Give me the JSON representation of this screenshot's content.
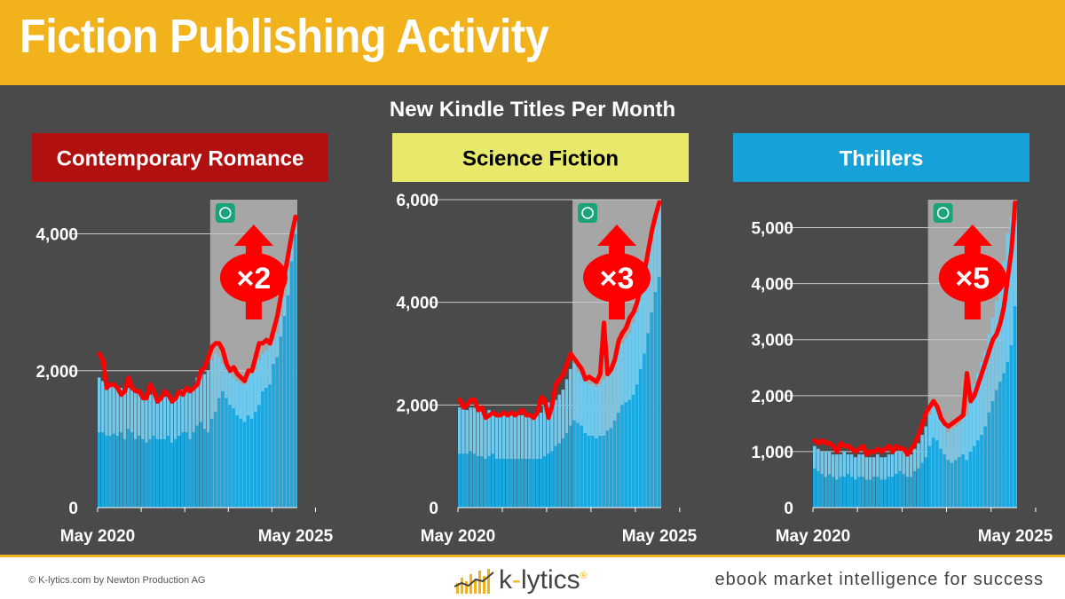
{
  "header": {
    "title": "Fiction Publishing Activity"
  },
  "subtitle": "New Kindle Titles Per Month",
  "colors": {
    "header": "#f2b21c",
    "background": "#4a4a4a",
    "bar_light": "#6fcaf0",
    "bar_dark": "#1aa8e0",
    "line": "#ff0000",
    "shade": "#a6a6a6"
  },
  "chart_data": [
    {
      "type": "bar",
      "title": "Contemporary Romance",
      "title_bg": "#b01010",
      "title_fg": "#ffffff",
      "multiplier": "×2",
      "xlim": [
        "May 2020",
        "May 2025"
      ],
      "xtick_labels": [
        "May 2020",
        "May 2025"
      ],
      "ylim": [
        0,
        4500
      ],
      "yticks": [
        0,
        2000,
        4000
      ],
      "ytick_labels": [
        "0",
        "2,000",
        "4,000"
      ],
      "grid": true,
      "highlight_from": "Dec 2022",
      "series": [
        {
          "values": [
            1100,
            1100,
            1050,
            1050,
            1080,
            1050,
            1100,
            1000,
            1150,
            1100,
            1000,
            1050,
            1000,
            950,
            1000,
            1050,
            1000,
            1000,
            1000,
            1050,
            950,
            1000,
            1050,
            1100,
            1100,
            1000,
            1100,
            1200,
            1250,
            1150,
            1100,
            1300,
            1400,
            1600,
            1700,
            1600,
            1500,
            1450,
            1350,
            1300,
            1250,
            1350,
            1300,
            1400,
            1500,
            1700,
            1750,
            1800,
            2100,
            2200,
            2500,
            2800,
            3100,
            3600,
            4000
          ]
        },
        {
          "values": [
            1900,
            1850,
            1800,
            1800,
            1780,
            1760,
            1750,
            1700,
            1750,
            1720,
            1700,
            1680,
            1650,
            1620,
            1650,
            1680,
            1600,
            1600,
            1620,
            1680,
            1600,
            1620,
            1700,
            1720,
            1750,
            1700,
            1750,
            1900,
            2000,
            1950,
            2000,
            2150,
            2250,
            2200,
            2100,
            2000,
            1950,
            1900,
            1850,
            1800,
            1800,
            1900,
            1950,
            2000,
            2150,
            2250,
            2300,
            2350,
            2450,
            2550,
            2800,
            3100,
            3500,
            3900,
            4200
          ]
        },
        {
          "values": [
            2250,
            2150,
            1750,
            1800,
            1800,
            1750,
            1650,
            1700,
            1900,
            1750,
            1700,
            1700,
            1600,
            1600,
            1800,
            1700,
            1550,
            1600,
            1700,
            1650,
            1550,
            1600,
            1700,
            1650,
            1750,
            1700,
            1750,
            1800,
            2000,
            2050,
            2200,
            2350,
            2400,
            2400,
            2300,
            2100,
            2000,
            2050,
            1950,
            1900,
            1850,
            2000,
            2000,
            2200,
            2400,
            2400,
            2450,
            2400,
            2600,
            2800,
            3100,
            3400,
            3700,
            4000,
            4250
          ]
        }
      ]
    },
    {
      "type": "bar",
      "title": "Science Fiction",
      "title_bg": "#e8e86a",
      "title_fg": "#000000",
      "multiplier": "×3",
      "xlim": [
        "May 2020",
        "May 2025"
      ],
      "xtick_labels": [
        "May 2020",
        "May 2025"
      ],
      "ylim": [
        0,
        6000
      ],
      "yticks": [
        0,
        2000,
        4000,
        6000
      ],
      "ytick_labels": [
        "0",
        "2,000",
        "4,000",
        "6,000"
      ],
      "grid": true,
      "highlight_from": "Dec 2022",
      "series": [
        {
          "values": [
            1050,
            1050,
            1050,
            1100,
            1050,
            1000,
            1000,
            950,
            1000,
            1050,
            950,
            950,
            950,
            950,
            950,
            950,
            950,
            950,
            950,
            950,
            950,
            950,
            950,
            1000,
            1050,
            1100,
            1200,
            1250,
            1350,
            1450,
            1600,
            1700,
            1650,
            1600,
            1450,
            1400,
            1400,
            1350,
            1400,
            1400,
            1500,
            1550,
            1700,
            1850,
            2000,
            2050,
            2100,
            2200,
            2400,
            2700,
            3000,
            3400,
            3800,
            4200,
            4500
          ]
        },
        {
          "values": [
            1950,
            1950,
            1900,
            1950,
            1950,
            1950,
            1900,
            1800,
            1900,
            1850,
            1800,
            1800,
            1800,
            1800,
            1800,
            1800,
            1800,
            1800,
            1800,
            1800,
            1800,
            1800,
            1850,
            2000,
            2050,
            2000,
            2100,
            2200,
            2300,
            2500,
            2700,
            2800,
            2650,
            2600,
            2500,
            2400,
            2400,
            2350,
            2400,
            2500,
            2600,
            2700,
            2850,
            3100,
            3200,
            3300,
            3400,
            3600,
            3800,
            4100,
            4400,
            4900,
            5300,
            5600,
            5850
          ]
        },
        {
          "values": [
            2100,
            1950,
            2000,
            2100,
            2100,
            1900,
            1950,
            1750,
            1800,
            1850,
            1800,
            1800,
            1850,
            1800,
            1850,
            1800,
            1850,
            1900,
            1800,
            1800,
            1750,
            1850,
            2150,
            2100,
            1750,
            2000,
            2400,
            2500,
            2600,
            2800,
            3000,
            2900,
            2800,
            2700,
            2500,
            2550,
            2500,
            2450,
            2600,
            3600,
            2600,
            2700,
            2900,
            3250,
            3400,
            3500,
            3700,
            3800,
            4000,
            4300,
            4600,
            5000,
            5400,
            5700,
            5950
          ]
        }
      ]
    },
    {
      "type": "bar",
      "title": "Thrillers",
      "title_bg": "#17a1d9",
      "title_fg": "#ffffff",
      "multiplier": "×5",
      "xlim": [
        "May 2020",
        "May 2025"
      ],
      "xtick_labels": [
        "May 2020",
        "May 2025"
      ],
      "ylim": [
        0,
        5500
      ],
      "yticks": [
        0,
        1000,
        2000,
        3000,
        4000,
        5000
      ],
      "ytick_labels": [
        "0",
        "1,000",
        "2,000",
        "3,000",
        "4,000",
        "5,000"
      ],
      "grid": true,
      "highlight_from": "Dec 2022",
      "series": [
        {
          "values": [
            700,
            650,
            600,
            550,
            600,
            550,
            500,
            550,
            550,
            600,
            550,
            500,
            550,
            550,
            500,
            500,
            550,
            550,
            500,
            500,
            550,
            550,
            600,
            650,
            600,
            550,
            550,
            650,
            700,
            800,
            900,
            1100,
            1250,
            1200,
            1050,
            950,
            850,
            800,
            850,
            900,
            950,
            850,
            1000,
            1100,
            1200,
            1300,
            1450,
            1700,
            1900,
            2100,
            2250,
            2400,
            2600,
            2900,
            3600
          ]
        },
        {
          "values": [
            1100,
            1050,
            1000,
            1000,
            1000,
            950,
            950,
            950,
            1000,
            950,
            950,
            900,
            950,
            950,
            900,
            900,
            900,
            950,
            900,
            900,
            950,
            950,
            1000,
            1050,
            1000,
            950,
            950,
            1050,
            1150,
            1300,
            1450,
            1650,
            1800,
            1750,
            1600,
            1450,
            1350,
            1400,
            1450,
            1500,
            1600,
            1650,
            1900,
            2200,
            2400,
            2600,
            2800,
            3100,
            3400,
            3700,
            4000,
            4400,
            4900,
            5200,
            5400
          ]
        },
        {
          "values": [
            1200,
            1150,
            1200,
            1150,
            1150,
            1100,
            1000,
            1150,
            1100,
            1100,
            1050,
            1000,
            1050,
            1100,
            950,
            1000,
            1000,
            1050,
            1000,
            1050,
            1100,
            1000,
            1100,
            1050,
            1050,
            950,
            1050,
            1150,
            1300,
            1500,
            1700,
            1800,
            1900,
            1800,
            1600,
            1500,
            1450,
            1500,
            1550,
            1600,
            1650,
            2400,
            1900,
            2000,
            2200,
            2400,
            2600,
            2800,
            3000,
            3100,
            3300,
            3600,
            4100,
            4600,
            5450
          ]
        }
      ]
    }
  ],
  "footer": {
    "copyright": "© K-lytics.com by Newton Production AG",
    "logo_left": "k",
    "logo_dash": "-",
    "logo_right": "lytics",
    "logo_reg": "®",
    "tagline": "ebook market intelligence for success"
  }
}
